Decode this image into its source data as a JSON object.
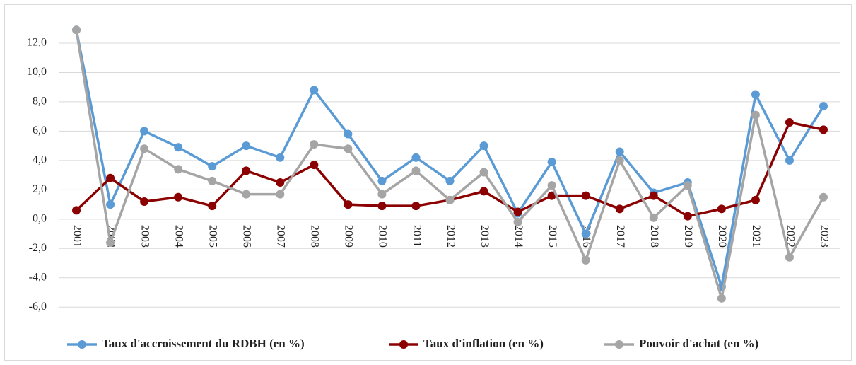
{
  "chart_data": {
    "type": "line",
    "categories": [
      "2001",
      "2002",
      "2003",
      "2004",
      "2005",
      "2006",
      "2007",
      "2008",
      "2009",
      "2010",
      "2011",
      "2012",
      "2013",
      "2014",
      "2015",
      "2016",
      "2017",
      "2018",
      "2019",
      "2020",
      "2021",
      "2022",
      "2023"
    ],
    "series": [
      {
        "name": "Taux d'accroissement du RDBH (en %)",
        "color": "#5b9bd5",
        "values": [
          12.9,
          1.0,
          6.0,
          4.9,
          3.6,
          5.0,
          4.2,
          8.8,
          5.8,
          2.6,
          4.2,
          2.6,
          5.0,
          0.4,
          3.9,
          -1.0,
          4.6,
          1.8,
          2.5,
          -4.6,
          8.5,
          4.0,
          7.7
        ]
      },
      {
        "name": "Taux d'inflation (en %)",
        "color": "#8b0000",
        "values": [
          0.6,
          2.8,
          1.2,
          1.5,
          0.9,
          3.3,
          2.5,
          3.7,
          1.0,
          0.9,
          0.9,
          1.3,
          1.9,
          0.5,
          1.6,
          1.6,
          0.7,
          1.6,
          0.2,
          0.7,
          1.3,
          6.6,
          6.1
        ]
      },
      {
        "name": "Pouvoir d'achat (en %)",
        "color": "#a5a5a5",
        "values": [
          12.9,
          -1.6,
          4.8,
          3.4,
          2.6,
          1.7,
          1.7,
          5.1,
          4.8,
          1.7,
          3.3,
          1.3,
          3.2,
          -0.2,
          2.3,
          -2.8,
          4.0,
          0.1,
          2.3,
          -5.4,
          7.1,
          -2.6,
          1.5
        ]
      }
    ],
    "ylim": [
      -7,
      14
    ],
    "yticks": [
      {
        "value": -6,
        "label": "-6,0"
      },
      {
        "value": -4,
        "label": "-4,0"
      },
      {
        "value": -2,
        "label": "-2,0"
      },
      {
        "value": 0,
        "label": "0,0"
      },
      {
        "value": 2,
        "label": "2,0"
      },
      {
        "value": 4,
        "label": "4,0"
      },
      {
        "value": 6,
        "label": "6,0"
      },
      {
        "value": 8,
        "label": "8,0"
      },
      {
        "value": 10,
        "label": "10,0"
      },
      {
        "value": 12,
        "label": "12,0"
      }
    ],
    "grid": true,
    "legend": "bottom"
  }
}
